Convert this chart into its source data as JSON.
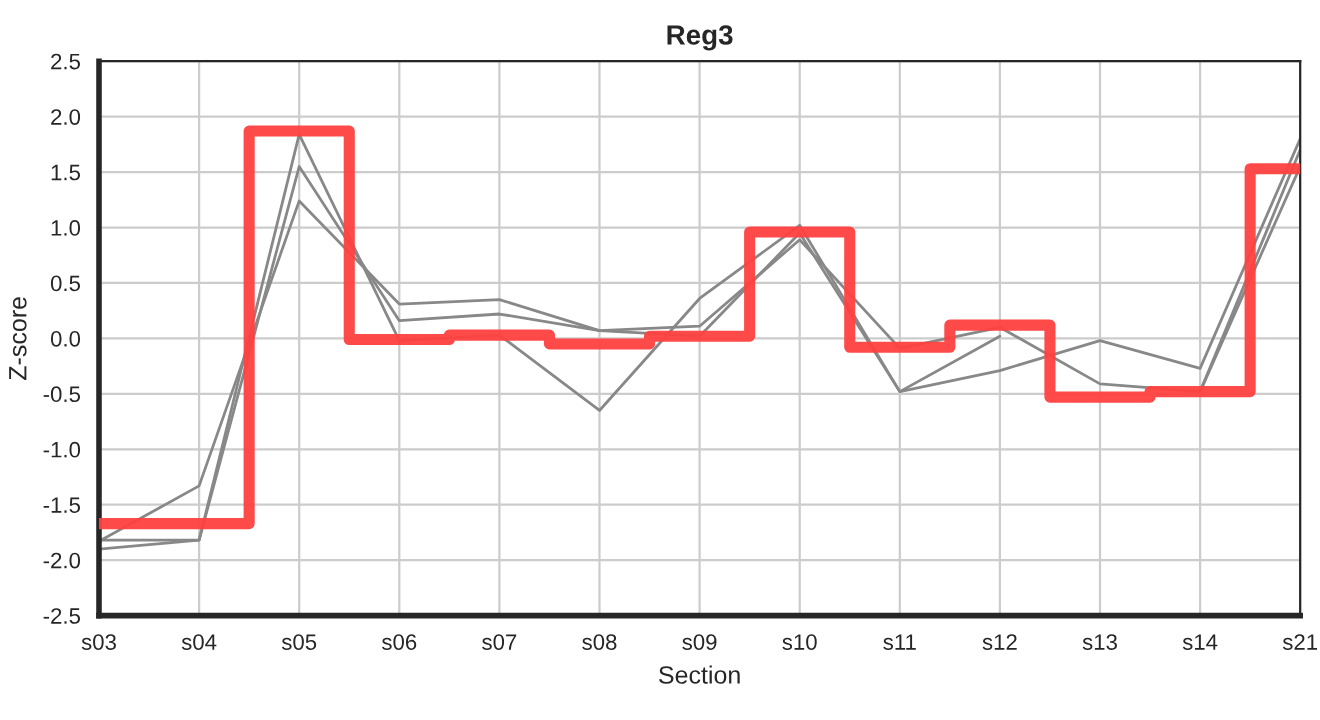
{
  "chart_data": {
    "type": "line",
    "title": "Reg3",
    "xlabel": "Section",
    "ylabel": "Z-score",
    "categories": [
      "s03",
      "s04",
      "s05",
      "s06",
      "s07",
      "s08",
      "s09",
      "s10",
      "s11",
      "s12",
      "s13",
      "s14",
      "s21"
    ],
    "series": [
      {
        "color": "#888888",
        "values": [
          -1.83,
          -1.33,
          1.24,
          0.31,
          0.35,
          0.07,
          0.11,
          0.89,
          -0.09,
          0.1,
          -0.41,
          -0.48,
          1.55
        ]
      },
      {
        "color": "#888888",
        "values": [
          -1.82,
          -1.82,
          1.55,
          0.16,
          0.22,
          0.07,
          0.02,
          0.95,
          -0.48,
          0.02,
          null,
          -0.48,
          1.7
        ]
      },
      {
        "color": "#888888",
        "values": [
          -1.9,
          -1.82,
          1.84,
          -0.02,
          0.03,
          -0.65,
          0.36,
          1.02,
          -0.48,
          -0.29,
          -0.02,
          -0.27,
          1.8
        ]
      },
      {
        "type": "step",
        "color": "#ff4040",
        "values": [
          -1.67,
          -1.67,
          1.87,
          -0.01,
          0.03,
          -0.05,
          0.02,
          0.96,
          -0.08,
          0.12,
          -0.53,
          -0.48,
          1.53
        ]
      }
    ],
    "ylim": [
      -2.5,
      2.5
    ],
    "yticks": [
      -2.5,
      {
        "value": -2.0,
        "label": "-2.0"
      },
      -1.5,
      {
        "value": -1.0,
        "label": "-1.0"
      },
      -0.5,
      {
        "value": 0.0,
        "label": "0.0"
      },
      0.5,
      {
        "value": 1.0,
        "label": "1.0"
      },
      1.5,
      {
        "value": 2.0,
        "label": "2.0"
      },
      2.5
    ],
    "grid": true
  }
}
